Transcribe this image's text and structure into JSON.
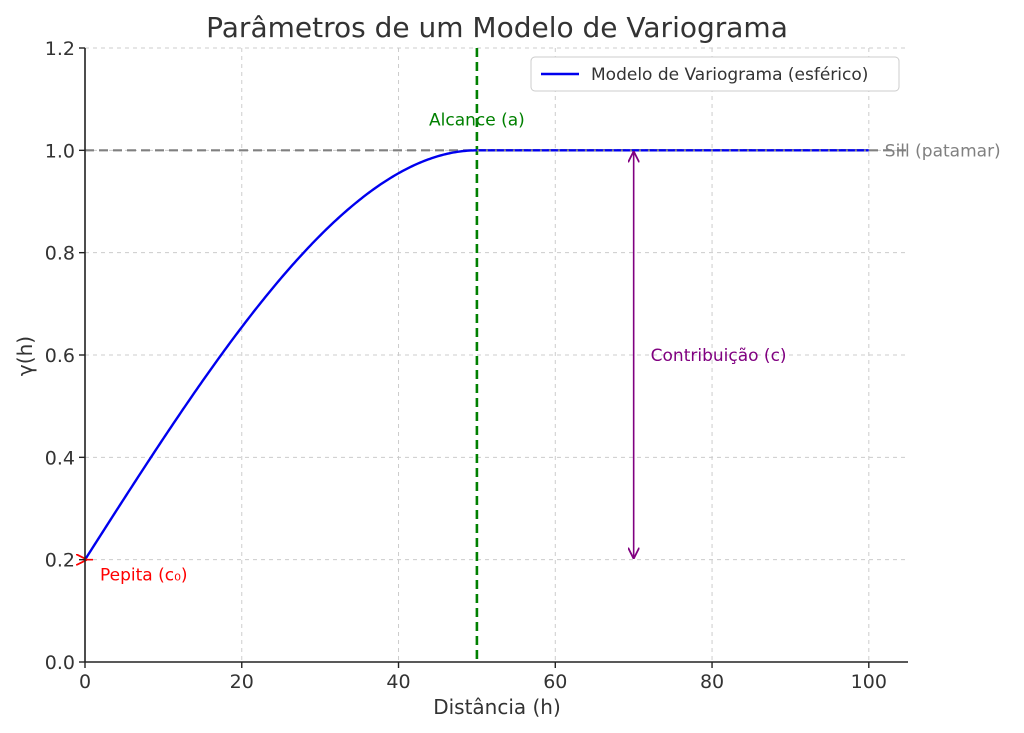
{
  "chart_data": {
    "type": "line",
    "title": "Parâmetros de um Modelo de Variograma",
    "xlabel": "Distância (h)",
    "ylabel": "γ(h)",
    "xlim": [
      0,
      105
    ],
    "ylim": [
      0,
      1.2
    ],
    "x_ticks": [
      0,
      20,
      40,
      60,
      80,
      100
    ],
    "x_tick_labels": [
      "0",
      "20",
      "40",
      "60",
      "80",
      "100"
    ],
    "y_ticks": [
      0.0,
      0.2,
      0.4,
      0.6,
      0.8,
      1.0,
      1.2
    ],
    "y_tick_labels": [
      "0.0",
      "0.2",
      "0.4",
      "0.6",
      "0.8",
      "1.0",
      "1.2"
    ],
    "grid": true,
    "legend_position": "top-right",
    "series": [
      {
        "name": "Modelo de Variograma (esférico)",
        "model": "spherical",
        "nugget": 0.2,
        "sill": 1.0,
        "range": 50,
        "x_max": 100,
        "color": "#0000ee"
      }
    ],
    "reference_lines": {
      "sill": {
        "y": 1.0,
        "label": "Sill (patamar)",
        "color": "#808080"
      },
      "range": {
        "x": 50,
        "label": "Alcance (a)",
        "color": "#008000"
      }
    },
    "annotations": {
      "nugget": {
        "x": 0,
        "y": 0.2,
        "label": "Pepita (c₀)",
        "color": "#ff0000"
      },
      "contribution": {
        "x": 70,
        "y_from": 0.2,
        "y_to": 1.0,
        "label": "Contribuição (c)",
        "color": "#800080"
      }
    }
  }
}
